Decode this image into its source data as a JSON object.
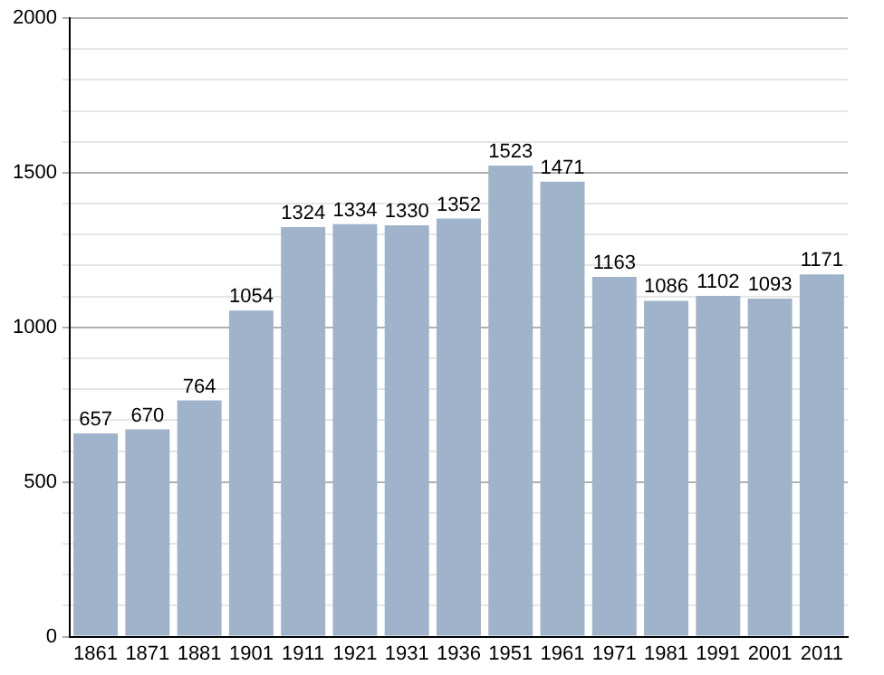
{
  "chart_data": {
    "type": "bar",
    "categories": [
      "1861",
      "1871",
      "1881",
      "1901",
      "1911",
      "1921",
      "1931",
      "1936",
      "1951",
      "1961",
      "1971",
      "1981",
      "1991",
      "2001",
      "2011"
    ],
    "values": [
      657,
      670,
      764,
      1054,
      1324,
      1334,
      1330,
      1352,
      1523,
      1471,
      1163,
      1086,
      1102,
      1093,
      1171
    ],
    "color": "#9fb3cb",
    "ylim": [
      0,
      2000
    ],
    "yticks": [
      0,
      {
        "value": 100,
        "label": null
      },
      {
        "value": 200,
        "label": null
      },
      {
        "value": 300,
        "label": null
      },
      {
        "value": 400,
        "label": null
      },
      500,
      {
        "value": 600,
        "label": null
      },
      {
        "value": 700,
        "label": null
      },
      {
        "value": 800,
        "label": null
      },
      {
        "value": 900,
        "label": null
      },
      1000,
      {
        "value": 1100,
        "label": null
      },
      {
        "value": 1200,
        "label": null
      },
      {
        "value": 1300,
        "label": null
      },
      {
        "value": 1400,
        "label": null
      },
      1500,
      {
        "value": 1600,
        "label": null
      },
      {
        "value": 1700,
        "label": null
      },
      {
        "value": 1800,
        "label": null
      },
      {
        "value": 1900,
        "label": null
      },
      2000
    ],
    "grid": "y",
    "data_labels": true
  }
}
